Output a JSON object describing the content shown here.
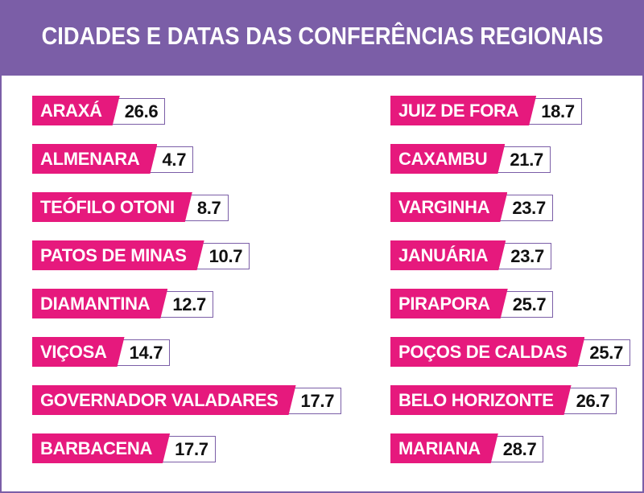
{
  "title": "CIDADES E DATAS DAS CONFERÊNCIAS REGIONAIS",
  "colors": {
    "header_bg": "#7b5ea7",
    "city_bg": "#e6197d",
    "date_border": "#7b5ea7"
  },
  "left_column": [
    {
      "city": "ARAXÁ",
      "date": "26.6"
    },
    {
      "city": "ALMENARA",
      "date": "4.7"
    },
    {
      "city": "TEÓFILO OTONI",
      "date": "8.7"
    },
    {
      "city": "PATOS DE MINAS",
      "date": "10.7"
    },
    {
      "city": "DIAMANTINA",
      "date": "12.7"
    },
    {
      "city": "VIÇOSA",
      "date": "14.7"
    },
    {
      "city": "GOVERNADOR VALADARES",
      "date": "17.7"
    },
    {
      "city": "BARBACENA",
      "date": "17.7"
    }
  ],
  "right_column": [
    {
      "city": "JUIZ DE FORA",
      "date": "18.7"
    },
    {
      "city": "CAXAMBU",
      "date": "21.7"
    },
    {
      "city": "VARGINHA",
      "date": "23.7"
    },
    {
      "city": "JANUÁRIA",
      "date": "23.7"
    },
    {
      "city": "PIRAPORA",
      "date": "25.7"
    },
    {
      "city": "POÇOS DE CALDAS",
      "date": "25.7"
    },
    {
      "city": "BELO HORIZONTE",
      "date": "26.7"
    },
    {
      "city": "MARIANA",
      "date": "28.7"
    }
  ]
}
